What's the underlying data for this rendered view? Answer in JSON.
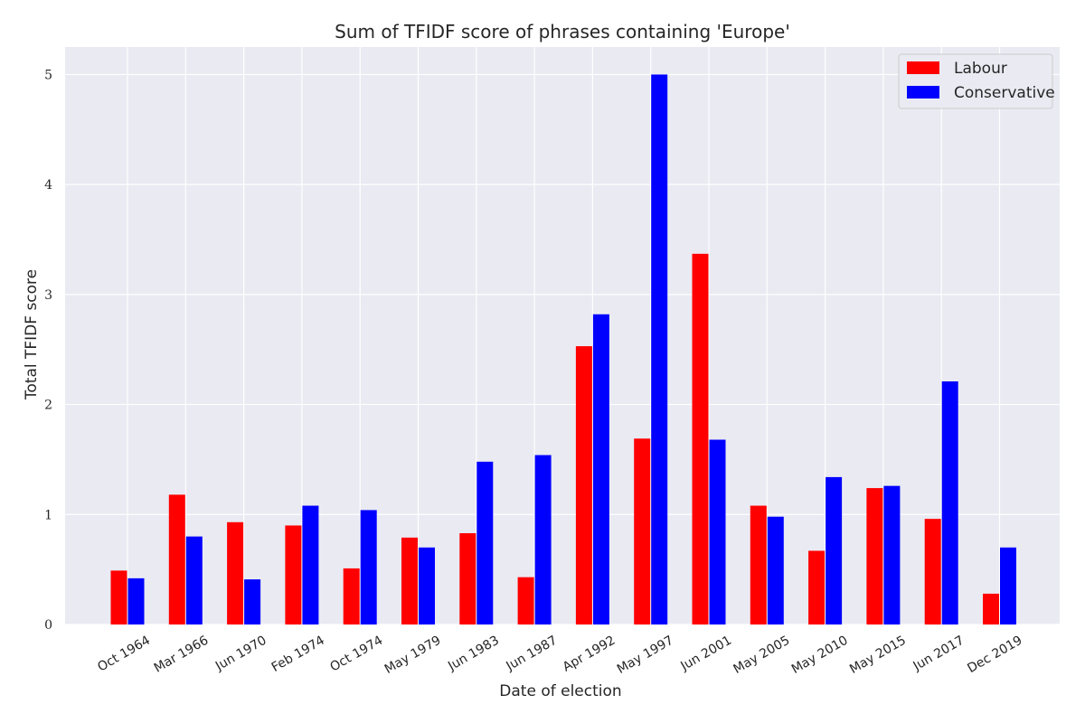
{
  "chart_data": {
    "type": "bar",
    "title": "Sum of TFIDF score of phrases containing 'Europe'",
    "xlabel": "Date of election",
    "ylabel": "Total TFIDF score",
    "categories": [
      "Oct 1964",
      "Mar 1966",
      "Jun 1970",
      "Feb 1974",
      "Oct 1974",
      "May 1979",
      "Jun 1983",
      "Jun 1987",
      "Apr 1992",
      "May 1997",
      "Jun 2001",
      "May 2005",
      "May 2010",
      "May 2015",
      "Jun 2017",
      "Dec 2019"
    ],
    "series": [
      {
        "name": "Labour",
        "color": "#ff0000",
        "values": [
          0.49,
          1.18,
          0.93,
          0.9,
          0.51,
          0.79,
          0.83,
          0.43,
          2.53,
          1.69,
          3.37,
          1.08,
          0.67,
          1.24,
          0.96,
          0.28
        ]
      },
      {
        "name": "Conservative",
        "color": "#0000ff",
        "values": [
          0.42,
          0.8,
          0.41,
          1.08,
          1.04,
          0.7,
          1.48,
          1.54,
          2.82,
          5.0,
          1.68,
          0.98,
          1.34,
          1.26,
          2.21,
          0.7
        ]
      }
    ],
    "yticks": [
      "0",
      "1",
      "2",
      "3",
      "4",
      "5"
    ],
    "ylim": [
      0,
      5.25
    ],
    "grid": true,
    "background_color": "#eaeaf2",
    "legend_position": "top-right"
  }
}
